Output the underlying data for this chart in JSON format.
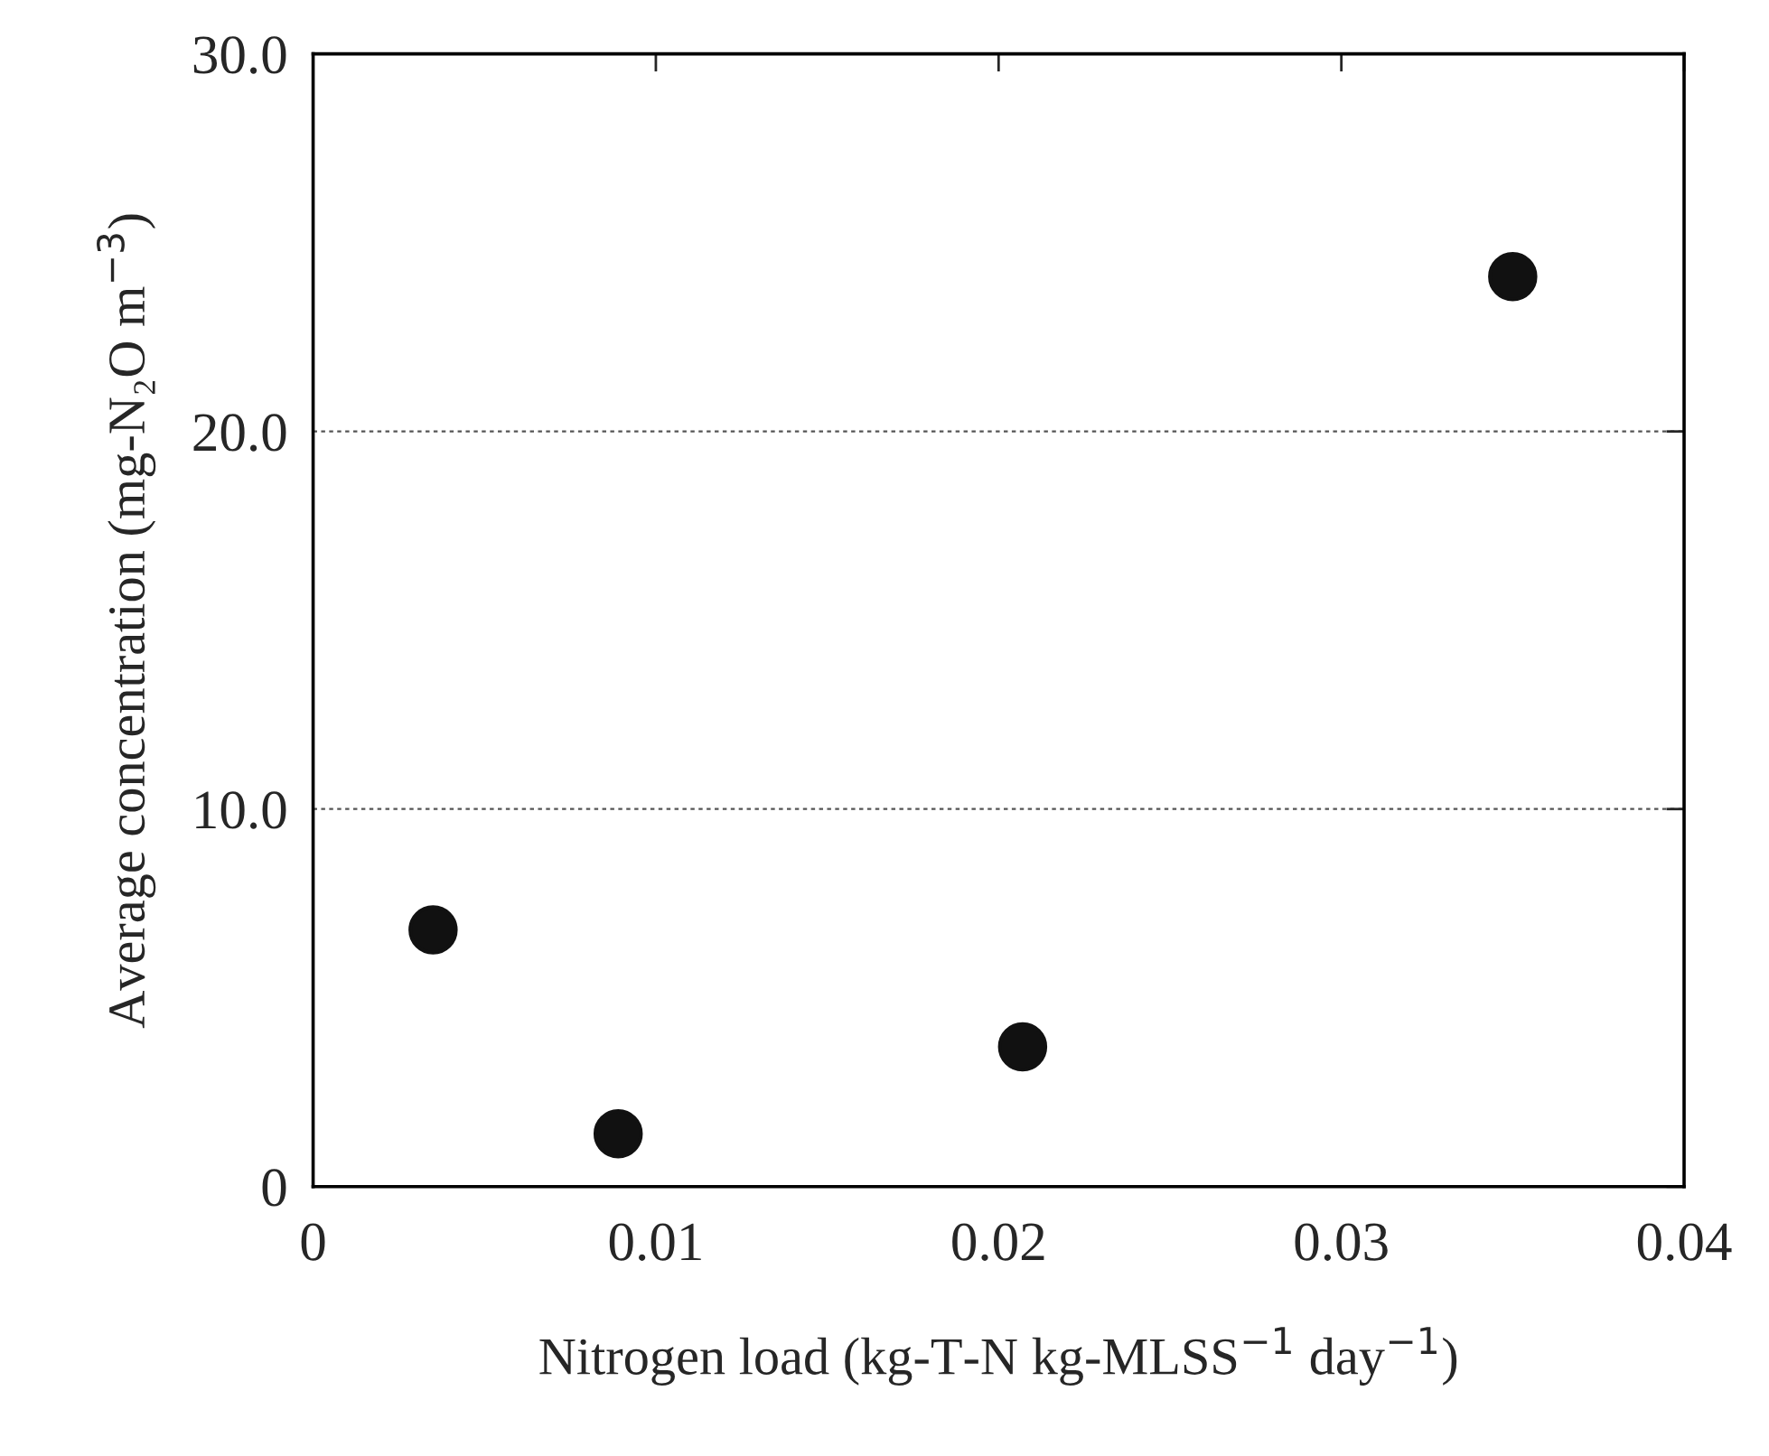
{
  "chart_data": {
    "type": "scatter",
    "xlabel": "Nitrogen load (kg-T-N kg-MLSS$^{−1}$ day$^{−1}$)",
    "ylabel": "Average concentration (mg-N₂O m$^{−3}$)",
    "x": [
      0.0035,
      0.0089,
      0.0207,
      0.035
    ],
    "series": [
      {
        "color": "#111111",
        "values": [
          6.8,
          1.4,
          3.7,
          24.1
        ]
      }
    ],
    "xlim": [
      0,
      0.04
    ],
    "xticks": [
      0,
      0.01,
      0.02,
      0.03,
      0.04
    ],
    "ylim": [
      0,
      30
    ],
    "yticks": [
      {
        "value": 0,
        "label": "0"
      },
      {
        "value": 10,
        "label": "10.0"
      },
      {
        "value": 20,
        "label": "20.0"
      },
      {
        "value": 30,
        "label": "30.0"
      }
    ],
    "grid": "y",
    "marker": "circle",
    "legend": false
  }
}
